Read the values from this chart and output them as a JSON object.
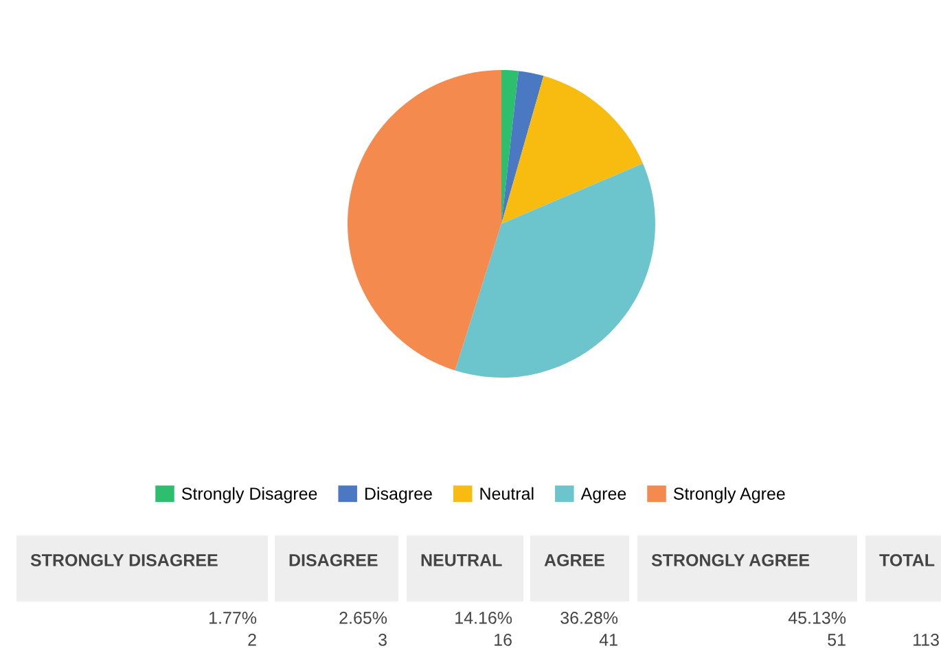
{
  "chart_data": {
    "type": "pie",
    "categories": [
      "Strongly Disagree",
      "Disagree",
      "Neutral",
      "Agree",
      "Strongly Agree"
    ],
    "values": [
      1.77,
      2.65,
      14.16,
      36.28,
      45.13
    ],
    "colors": [
      "#2dbf6e",
      "#4a78c2",
      "#f7bc0f",
      "#6cc5cc",
      "#f58a4f"
    ],
    "annotations": [
      "STRONGLY DISAGREE",
      "DISAGREE",
      "NEUTRAL",
      "AGREE",
      "STRONGLY AGREE",
      "TOTAL",
      "1.77%",
      "2.65%",
      "14.16%",
      "36.28%",
      "45.13%",
      "2",
      "3",
      "16",
      "41",
      "51",
      "113"
    ],
    "legend": "bottom"
  }
}
